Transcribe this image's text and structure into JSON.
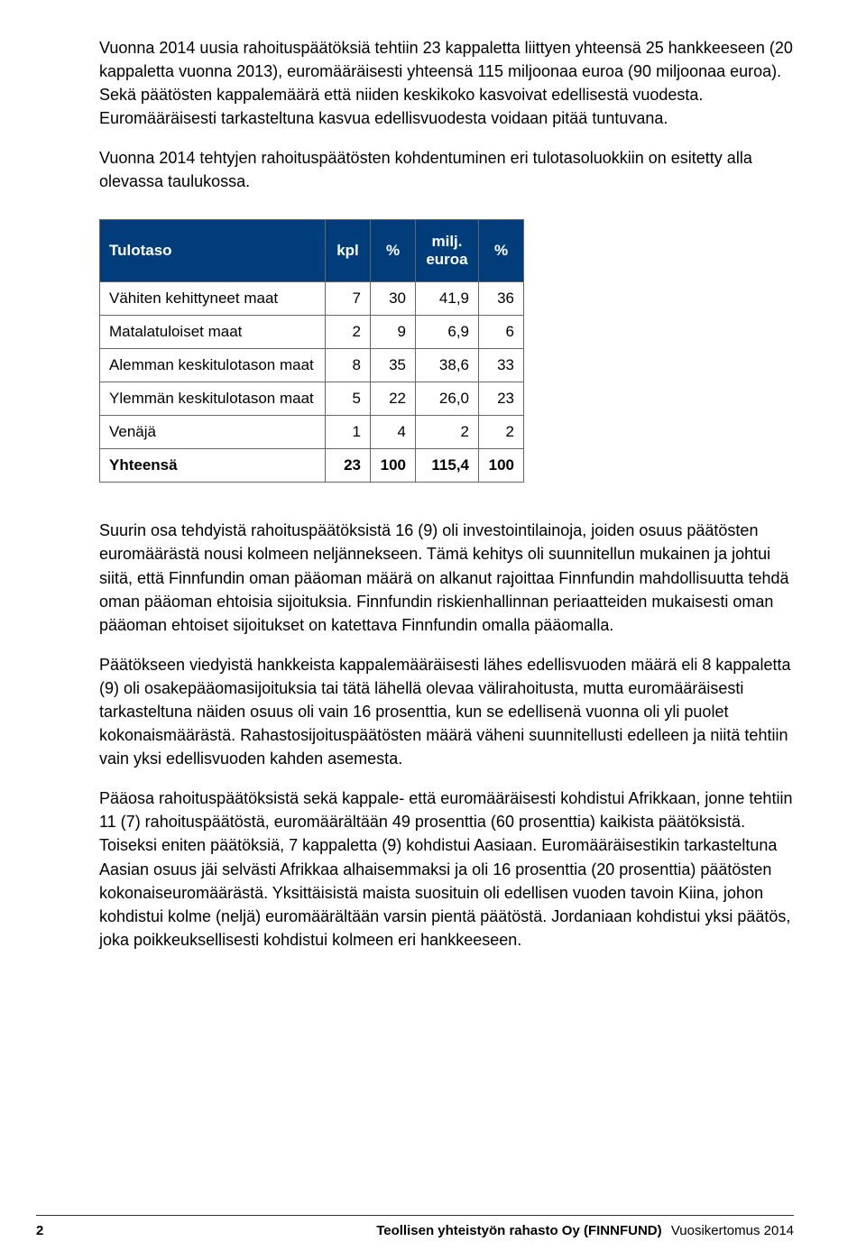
{
  "paragraphs": {
    "p1": "Vuonna 2014 uusia rahoituspäätöksiä tehtiin 23 kappaletta liittyen yhteensä 25 hankkeeseen (20 kappaletta vuonna 2013), euromääräisesti yhteensä 115 miljoonaa euroa (90 miljoonaa euroa). Sekä päätösten kappalemäärä että niiden keskikoko kasvoivat edellisestä vuodesta. Euromääräisesti tarkasteltuna kasvua edellisvuodesta voidaan pitää tuntuvana.",
    "p2": "Vuonna 2014 tehtyjen rahoituspäätösten kohdentuminen eri tulotasoluokkiin on esitetty alla olevassa taulukossa.",
    "p3": "Suurin osa tehdyistä rahoituspäätöksistä 16 (9) oli investointilainoja, joiden osuus päätösten euromäärästä nousi kolmeen neljännekseen. Tämä kehitys oli suunnitellun mukainen ja johtui siitä, että Finnfundin oman pääoman määrä on alkanut rajoittaa Finnfundin mahdollisuutta tehdä oman pääoman ehtoisia sijoituksia. Finnfundin riskienhallinnan periaatteiden mukaisesti oman pääoman ehtoiset sijoitukset on katettava Finnfundin omalla pääomalla.",
    "p4": "Päätökseen viedyistä hankkeista kappalemääräisesti lähes edellisvuoden määrä eli 8 kappaletta (9) oli osakepääomasijoituksia tai tätä lähellä olevaa välirahoitusta, mutta euromääräisesti tarkasteltuna näiden osuus oli vain 16 prosenttia, kun se edellisenä vuonna oli yli puolet kokonaismäärästä. Rahastosijoituspäätösten määrä väheni suunnitellusti edelleen ja niitä tehtiin vain yksi edellisvuoden kahden asemesta.",
    "p5": "Pääosa rahoituspäätöksistä sekä kappale- että euromääräisesti kohdistui Afrikkaan, jonne tehtiin 11 (7) rahoituspäätöstä, euromäärältään 49 prosenttia (60 prosenttia) kaikista päätöksistä. Toiseksi eniten päätöksiä, 7 kappaletta (9) kohdistui Aasiaan. Euromääräisestikin tarkasteltuna Aasian osuus jäi selvästi Afrikkaa alhaisemmaksi ja oli 16 prosenttia (20 prosenttia) päätösten kokonaiseuromäärästä. Yksittäisistä maista suosituin oli edellisen vuoden tavoin Kiina, johon kohdistui kolme (neljä) euromäärältään varsin pientä päätöstä. Jordaniaan kohdistui yksi päätös, joka poikkeuksellisesti kohdistui kolmeen eri hankkeeseen."
  },
  "table": {
    "type": "table",
    "header_bg": "#003d7a",
    "header_fg": "#ffffff",
    "border_color": "#666666",
    "columns": [
      {
        "label": "Tulotaso",
        "align": "left"
      },
      {
        "label": "kpl",
        "align": "center"
      },
      {
        "label": "%",
        "align": "center"
      },
      {
        "label_top": "milj.",
        "label_bottom": "euroa",
        "align": "center"
      },
      {
        "label": "%",
        "align": "center"
      }
    ],
    "rows": [
      {
        "label": "Vähiten kehittyneet maat",
        "kpl": "7",
        "kpl_pct": "30",
        "euro": "41,9",
        "euro_pct": "36",
        "bold": false
      },
      {
        "label": "Matalatuloiset maat",
        "kpl": "2",
        "kpl_pct": "9",
        "euro": "6,9",
        "euro_pct": "6",
        "bold": false
      },
      {
        "label": "Alemman keskitulotason maat",
        "kpl": "8",
        "kpl_pct": "35",
        "euro": "38,6",
        "euro_pct": "33",
        "bold": false
      },
      {
        "label": "Ylemmän keskitulotason maat",
        "kpl": "5",
        "kpl_pct": "22",
        "euro": "26,0",
        "euro_pct": "23",
        "bold": false
      },
      {
        "label": "Venäjä",
        "kpl": "1",
        "kpl_pct": "4",
        "euro": "2",
        "euro_pct": "2",
        "bold": false
      },
      {
        "label": "Yhteensä",
        "kpl": "23",
        "kpl_pct": "100",
        "euro": "115,4",
        "euro_pct": "100",
        "bold": true
      }
    ]
  },
  "footer": {
    "page": "2",
    "title": "Teollisen yhteistyön rahasto Oy (FINNFUND)",
    "subtitle": "Vuosikertomus 2014"
  }
}
